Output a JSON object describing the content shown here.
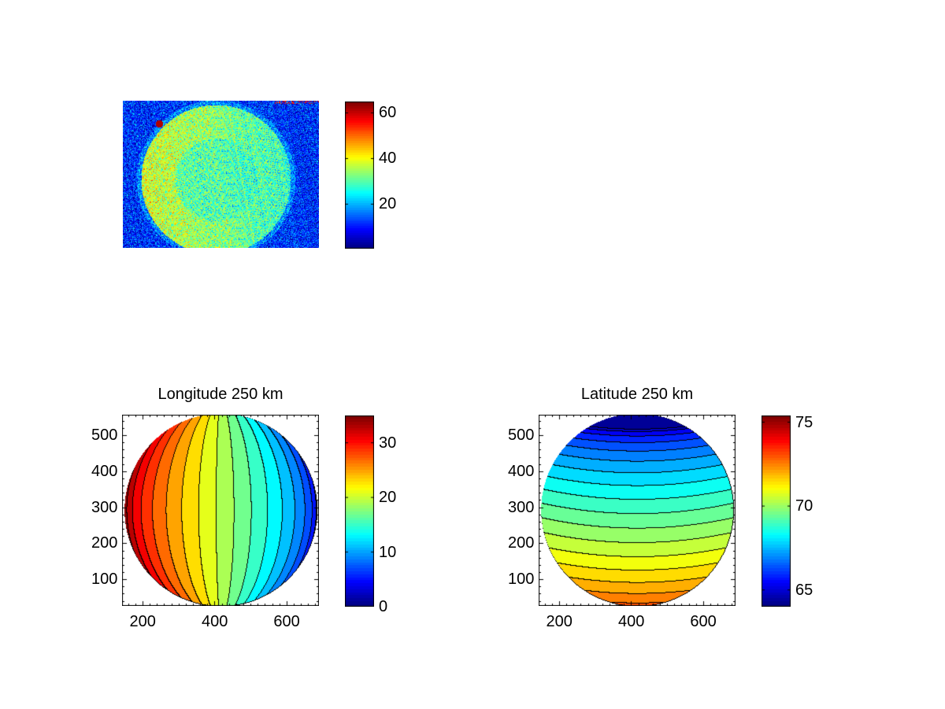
{
  "chart_data": [
    {
      "type": "heatmap",
      "name": "raw-image",
      "title": "",
      "description_of_values": "noisy intensity image of a disc",
      "colorbar": {
        "range": [
          0.5,
          65
        ],
        "ticks": [
          20,
          40,
          60
        ],
        "tick_labels": [
          "20",
          "40",
          "60"
        ],
        "colormap": "jet"
      }
    },
    {
      "type": "heatmap",
      "name": "longitude",
      "title": "Longitude 250 km",
      "xlim": [
        143,
        690
      ],
      "ylim": [
        26,
        557
      ],
      "xticks": [
        200,
        400,
        600
      ],
      "xtick_labels": [
        "200",
        "400",
        "600"
      ],
      "yticks": [
        100,
        200,
        300,
        400,
        500
      ],
      "ytick_labels": [
        "100",
        "200",
        "300",
        "400",
        "500"
      ],
      "contour_levels": [
        0,
        2,
        4,
        6,
        8,
        10,
        12,
        14,
        16,
        18,
        20,
        22,
        24,
        26,
        28,
        30,
        32,
        34
      ],
      "field_range": [
        0,
        35
      ],
      "colorbar": {
        "range": [
          0,
          35
        ],
        "ticks": [
          0,
          10,
          20,
          30
        ],
        "tick_labels": [
          "0",
          "10",
          "20",
          "30"
        ],
        "colormap": "jet"
      }
    },
    {
      "type": "heatmap",
      "name": "latitude",
      "title": "Latitude 250 km",
      "xlim": [
        143,
        690
      ],
      "ylim": [
        26,
        557
      ],
      "xticks": [
        200,
        400,
        600
      ],
      "xtick_labels": [
        "200",
        "400",
        "600"
      ],
      "yticks": [
        100,
        200,
        300,
        400,
        500
      ],
      "ytick_labels": [
        "100",
        "200",
        "300",
        "400",
        "500"
      ],
      "contour_levels": [
        64.5,
        65,
        65.5,
        66,
        66.5,
        67,
        67.5,
        68,
        68.5,
        69,
        69.5,
        70,
        70.5,
        71,
        71.5,
        72,
        72.5,
        73,
        73.5,
        74
      ],
      "field_range": [
        64,
        75
      ],
      "colorbar": {
        "range": [
          64,
          75.4
        ],
        "ticks": [
          65,
          70,
          75
        ],
        "tick_labels": [
          "65",
          "70",
          "75"
        ],
        "colormap": "jet"
      }
    }
  ]
}
